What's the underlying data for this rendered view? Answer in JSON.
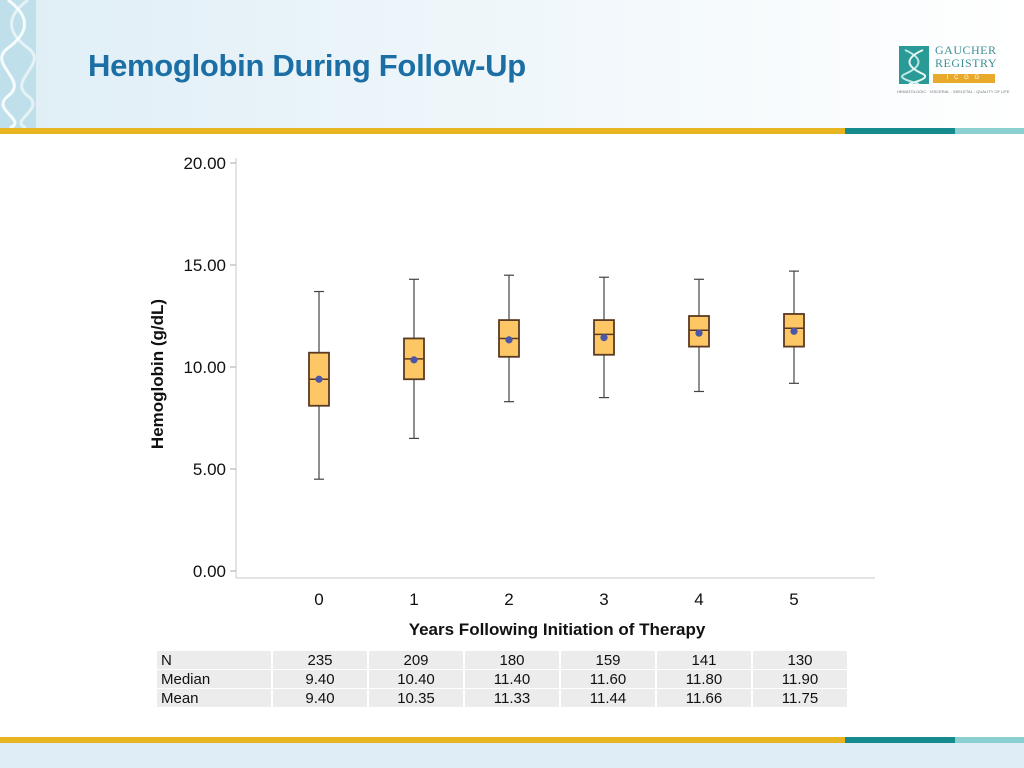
{
  "slide": {
    "title": "Hemoglobin During Follow-Up"
  },
  "logo": {
    "name_line1": "GAUCHER",
    "name_line2": "REGISTRY",
    "bar_text": "I C G G",
    "tagline": "HEMATOLOGIC · VISCERAL · SKELETAL · QUALITY OF LIFE"
  },
  "colors": {
    "title": "#1c6fa5",
    "box_fill": "#fdc766",
    "box_stroke": "#5b3a22",
    "mean_marker": "#4a56a6",
    "gold_bar": "#e8b422",
    "teal_bar": "#168a8c",
    "light_teal_bar": "#8ccfd0"
  },
  "chart_data": {
    "type": "box",
    "title": "",
    "xlabel": "Years Following Initiation of Therapy",
    "ylabel": "Hemoglobin (g/dL)",
    "ylim": [
      0,
      20
    ],
    "yticks": [
      "0.00",
      "5.00",
      "10.00",
      "15.00",
      "20.00"
    ],
    "categories": [
      "0",
      "1",
      "2",
      "3",
      "4",
      "5"
    ],
    "whisker_low": [
      4.5,
      6.5,
      8.3,
      8.5,
      8.8,
      9.2
    ],
    "q1": [
      8.1,
      9.4,
      10.5,
      10.6,
      11.0,
      11.0
    ],
    "median": [
      9.4,
      10.4,
      11.4,
      11.6,
      11.8,
      11.9
    ],
    "q3": [
      10.7,
      11.4,
      12.3,
      12.3,
      12.5,
      12.6
    ],
    "whisker_high": [
      13.7,
      14.3,
      14.5,
      14.4,
      14.3,
      14.7
    ],
    "mean": [
      9.4,
      10.35,
      11.33,
      11.44,
      11.66,
      11.75
    ],
    "grid": false,
    "legend": "none"
  },
  "table": {
    "rows": [
      {
        "label": "N",
        "values": [
          "235",
          "209",
          "180",
          "159",
          "141",
          "130"
        ]
      },
      {
        "label": "Median",
        "values": [
          "9.40",
          "10.40",
          "11.40",
          "11.60",
          "11.80",
          "11.90"
        ]
      },
      {
        "label": "Mean",
        "values": [
          "9.40",
          "10.35",
          "11.33",
          "11.44",
          "11.66",
          "11.75"
        ]
      }
    ]
  }
}
